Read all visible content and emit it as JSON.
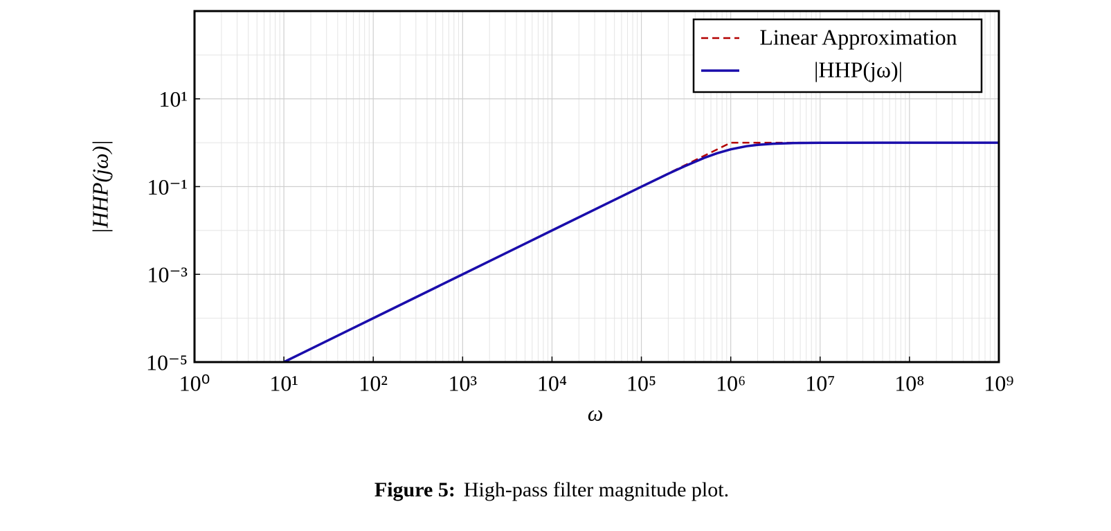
{
  "chart_data": {
    "type": "line",
    "xlabel": "ω",
    "ylabel": "|HHP(jω)|",
    "xscale": "log",
    "yscale": "log",
    "xlim": [
      1,
      1000000000
    ],
    "ylim": [
      1e-05,
      1000
    ],
    "xticks": [
      {
        "value": 1,
        "label": "10⁰"
      },
      {
        "value": 10,
        "label": "10¹"
      },
      {
        "value": 100,
        "label": "10²"
      },
      {
        "value": 1000,
        "label": "10³"
      },
      {
        "value": 10000,
        "label": "10⁴"
      },
      {
        "value": 100000,
        "label": "10⁵"
      },
      {
        "value": 1000000,
        "label": "10⁶"
      },
      {
        "value": 10000000,
        "label": "10⁷"
      },
      {
        "value": 100000000,
        "label": "10⁸"
      },
      {
        "value": 1000000000,
        "label": "10⁹"
      }
    ],
    "yticks": [
      {
        "value": 1e-05,
        "label": "10⁻⁵"
      },
      {
        "value": 0.001,
        "label": "10⁻³"
      },
      {
        "value": 0.1,
        "label": "10⁻¹"
      },
      {
        "value": 10,
        "label": "10¹"
      }
    ],
    "grid": true,
    "minor_grid": true,
    "legend": "upper right",
    "series": [
      {
        "name": "Linear Approximation",
        "color": "#b30000",
        "dash": true,
        "x": [
          10,
          1000000,
          1000000000
        ],
        "values": [
          1e-05,
          1,
          1
        ]
      },
      {
        "name": "|HHP(jω)|",
        "color": "#1a0dab",
        "dash": false,
        "x": [
          10,
          100,
          1000,
          10000,
          100000,
          200000,
          300000,
          500000,
          700000,
          1000000,
          1500000,
          2000000,
          3000000,
          5000000,
          10000000,
          100000000,
          1000000000
        ],
        "values": [
          1e-05,
          0.0001,
          0.001,
          0.01,
          0.0995,
          0.196,
          0.287,
          0.447,
          0.573,
          0.707,
          0.832,
          0.894,
          0.949,
          0.981,
          0.995,
          1,
          1
        ]
      }
    ]
  },
  "caption": {
    "label": "Figure 5:",
    "text": "High-pass filter magnitude plot."
  }
}
